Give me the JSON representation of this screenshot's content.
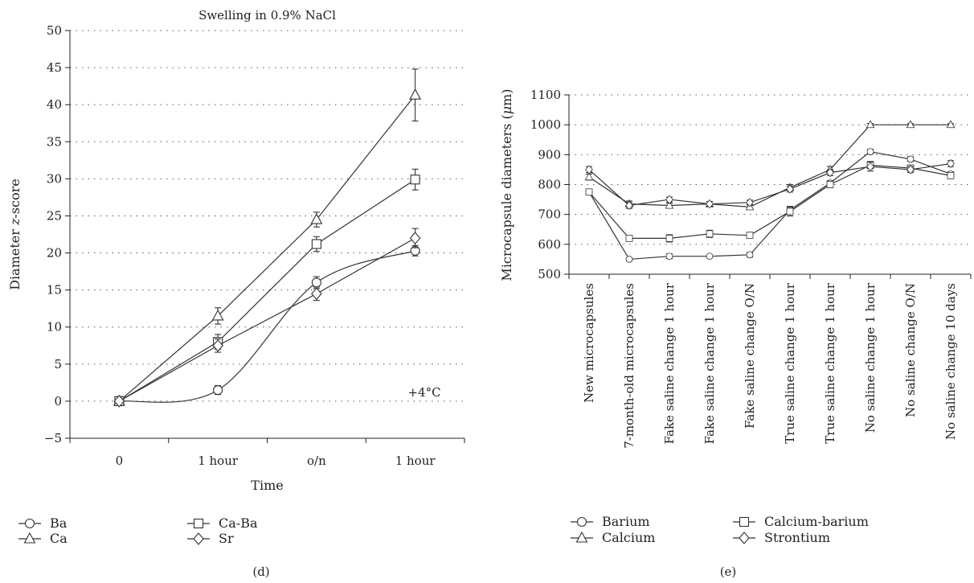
{
  "chart_data": [
    {
      "panel": "(d)",
      "type": "line",
      "title": "Swelling in 0.9% NaCl",
      "xlabel": "Time",
      "ylabel_prefix": "Diameter ",
      "ylabel_var": "z",
      "ylabel_suffix": "-score",
      "categories": [
        "0",
        "1 hour",
        "o/n",
        "1 hour"
      ],
      "ylim": [
        -5,
        50
      ],
      "yticks": [
        -5,
        0,
        5,
        10,
        15,
        20,
        25,
        30,
        35,
        40,
        45,
        50
      ],
      "ytick_labels": [
        "−5",
        "0",
        "5",
        "10",
        "15",
        "20",
        "25",
        "30",
        "35",
        "40",
        "45",
        "50"
      ],
      "grid": "horizontal-dotted",
      "annotation": "+4°C",
      "legend_position": "bottom",
      "series": [
        {
          "name": "Ba",
          "marker": "circle",
          "smooth": true,
          "values": [
            0,
            1.5,
            16,
            20.3
          ],
          "errors": [
            0.6,
            0.6,
            0.8,
            0.7
          ]
        },
        {
          "name": "Ca",
          "marker": "triangle",
          "smooth": false,
          "values": [
            0,
            11.5,
            24.5,
            41.3
          ],
          "errors": [
            0.6,
            1.1,
            1.0,
            3.5
          ]
        },
        {
          "name": "Ca-Ba",
          "marker": "square",
          "smooth": false,
          "values": [
            0,
            8,
            21.2,
            29.9
          ],
          "errors": [
            0.6,
            1.0,
            1.0,
            1.4
          ]
        },
        {
          "name": "Sr",
          "marker": "diamond",
          "smooth": false,
          "values": [
            0,
            7.5,
            14.5,
            22
          ],
          "errors": [
            0.6,
            0.9,
            0.9,
            1.3
          ]
        }
      ]
    },
    {
      "panel": "(e)",
      "type": "line",
      "title": "",
      "xlabel": "",
      "ylabel_prefix": "Microcapsule diameters (",
      "ylabel_var": "μ",
      "ylabel_suffix": "m)",
      "categories": [
        "New microcapsules",
        "7-month-old microcapsules",
        "Fake saline change 1 hour",
        "Fake saline change 1 hour",
        "Fake saline change O/N",
        "True saline change 1 hour",
        "True saline change 1 hour",
        "No saline change 1 hour",
        "No saline change O/N",
        "No saline change 10 days"
      ],
      "ylim": [
        500,
        1100
      ],
      "yticks": [
        500,
        600,
        700,
        800,
        900,
        1000,
        1100
      ],
      "ytick_labels": [
        "500",
        "600",
        "700",
        "800",
        "900",
        "1000",
        "1100"
      ],
      "grid": "horizontal-dotted",
      "legend_position": "bottom",
      "series": [
        {
          "name": "Barium",
          "marker": "circle",
          "values": [
            775,
            550,
            560,
            560,
            565,
            715,
            805,
            910,
            885,
            835
          ],
          "errors": [
            8,
            5,
            8,
            5,
            8,
            12,
            8,
            8,
            8,
            8
          ]
        },
        {
          "name": "Calcium",
          "marker": "triangle",
          "values": [
            825,
            735,
            730,
            735,
            725,
            790,
            850,
            1000,
            1000,
            1000
          ],
          "errors": [
            10,
            10,
            8,
            8,
            8,
            10,
            10,
            4,
            4,
            4
          ]
        },
        {
          "name": "Calcium-barium",
          "marker": "square",
          "values": [
            775,
            620,
            620,
            635,
            630,
            710,
            800,
            865,
            855,
            830
          ],
          "errors": [
            10,
            8,
            12,
            12,
            10,
            15,
            10,
            12,
            10,
            10
          ]
        },
        {
          "name": "Strontium",
          "marker": "diamond",
          "values": [
            850,
            730,
            750,
            735,
            740,
            785,
            840,
            860,
            850,
            870
          ],
          "errors": [
            10,
            10,
            8,
            8,
            8,
            10,
            10,
            15,
            10,
            10
          ]
        }
      ]
    }
  ]
}
